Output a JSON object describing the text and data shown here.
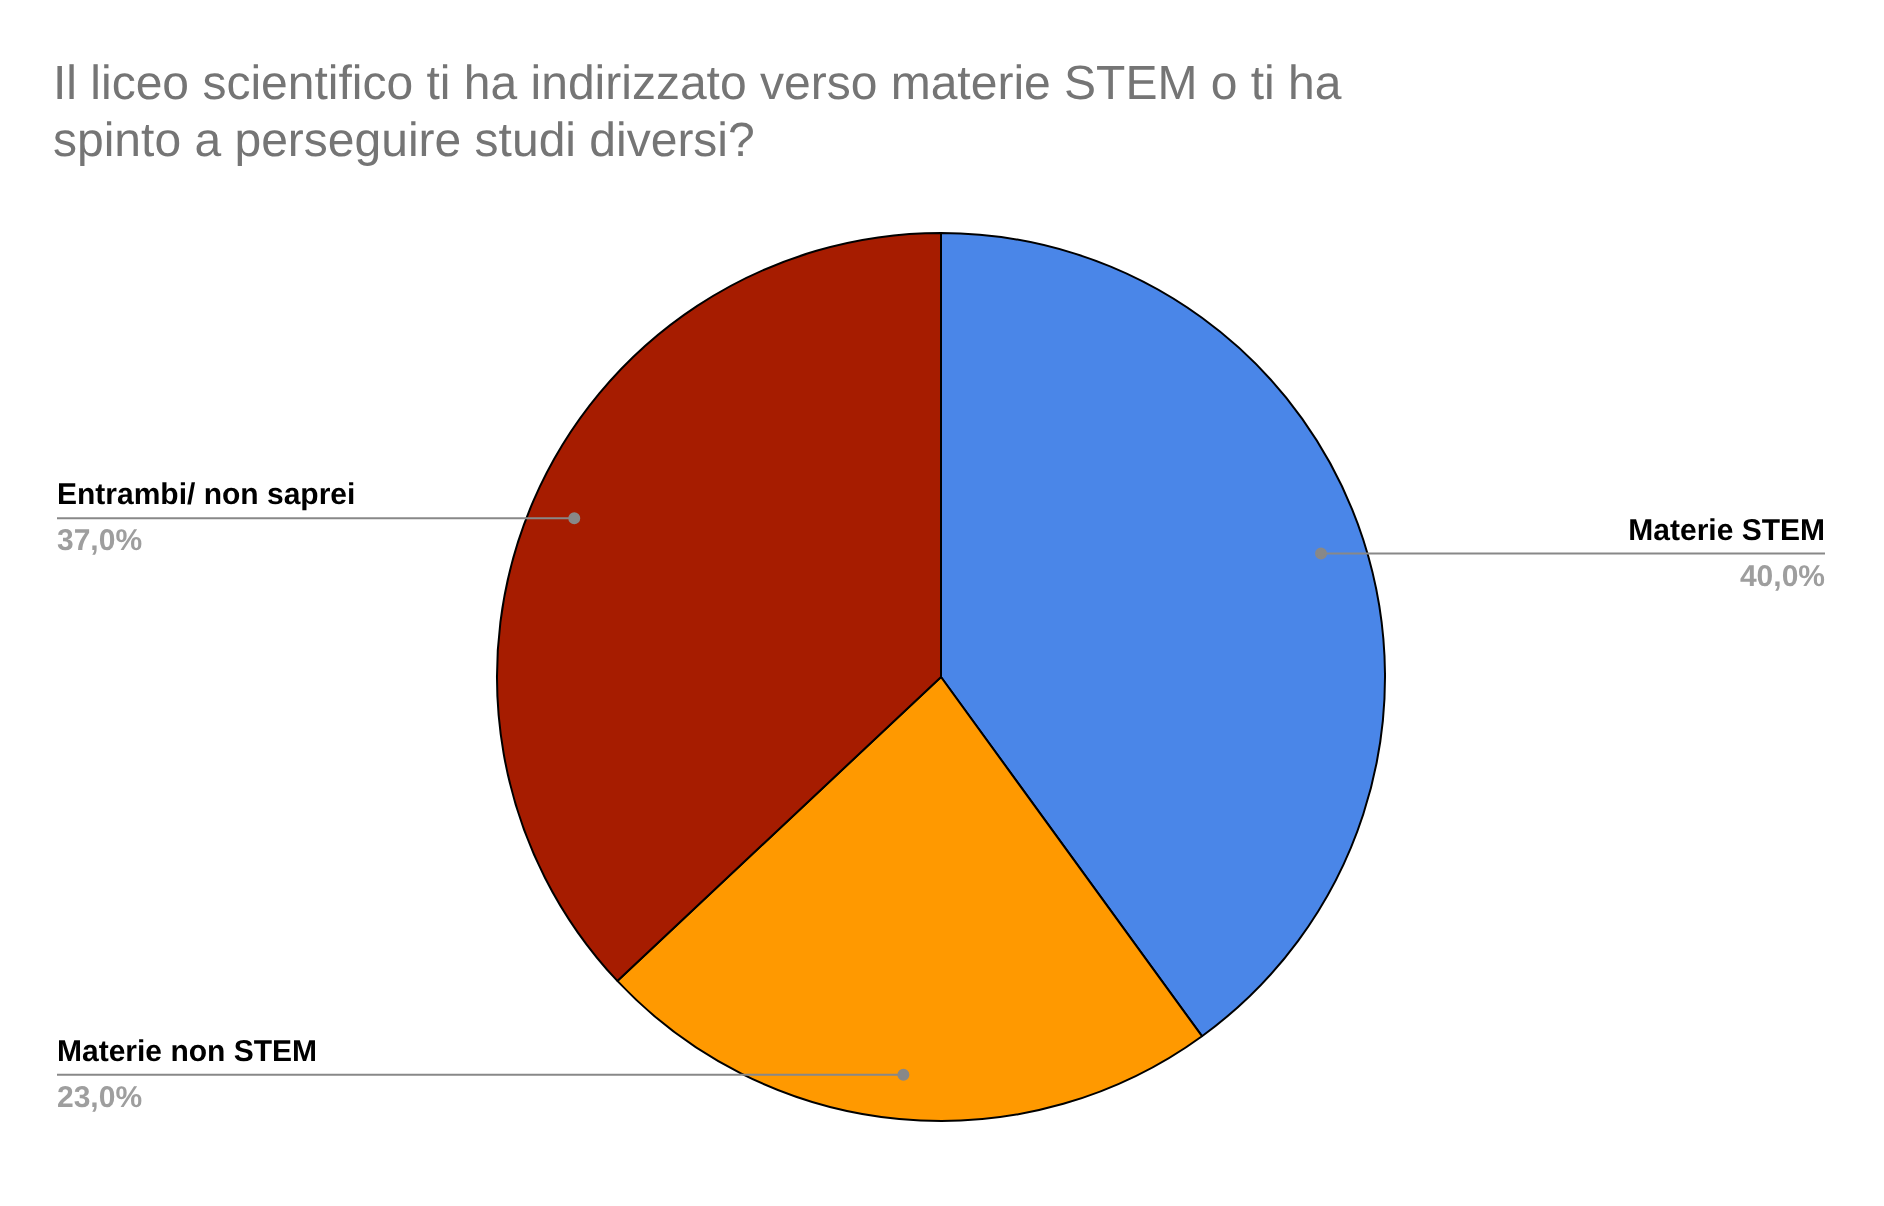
{
  "chart_data": {
    "type": "pie",
    "title": "Il liceo scientifico ti ha indirizzato verso materie STEM o ti ha spinto a perseguire studi diversi?",
    "categories": [
      "Materie STEM",
      "Materie non STEM",
      "Entrambi/ non saprei"
    ],
    "values": [
      40,
      23,
      37
    ],
    "colors": [
      "#4a86e8",
      "#ff9900",
      "#a61c00"
    ],
    "value_labels": [
      "40,0%",
      "23,0%",
      "37,0%"
    ]
  }
}
